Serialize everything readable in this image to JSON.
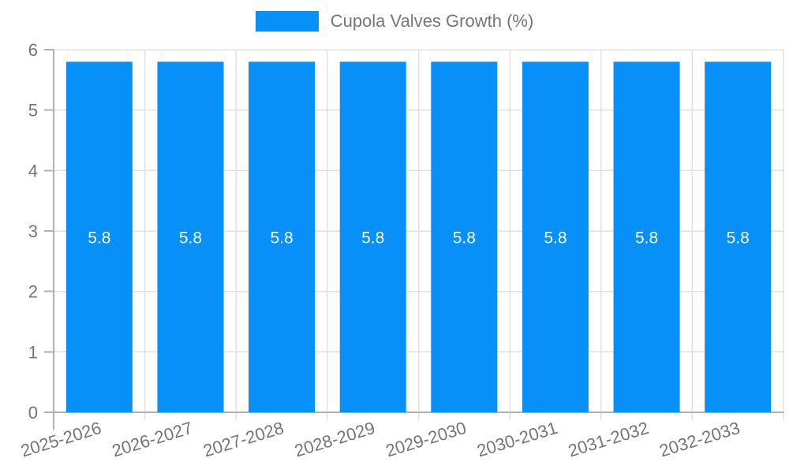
{
  "chart_data": {
    "type": "bar",
    "title": "Cupola Valves Growth (%)",
    "categories": [
      "2025-2026",
      "2026-2027",
      "2027-2028",
      "2028-2029",
      "2029-2030",
      "2030-2031",
      "2031-2032",
      "2032-2033"
    ],
    "values": [
      5.8,
      5.8,
      5.8,
      5.8,
      5.8,
      5.8,
      5.8,
      5.8
    ],
    "value_labels": [
      "5.8",
      "5.8",
      "5.8",
      "5.8",
      "5.8",
      "5.8",
      "5.8",
      "5.8"
    ],
    "y_ticks": [
      0,
      1,
      2,
      3,
      4,
      5,
      6
    ],
    "ylim": [
      0,
      6
    ],
    "xlabel": "",
    "ylabel": "",
    "grid": true,
    "legend_position": "top",
    "x_label_rotation_deg": -17,
    "colors": {
      "bar": "#0690f8",
      "grid": "#e0e0e0",
      "axis": "#b0b0b0",
      "text": "#757575",
      "value_label": "#ffffff",
      "background": "#ffffff"
    }
  }
}
